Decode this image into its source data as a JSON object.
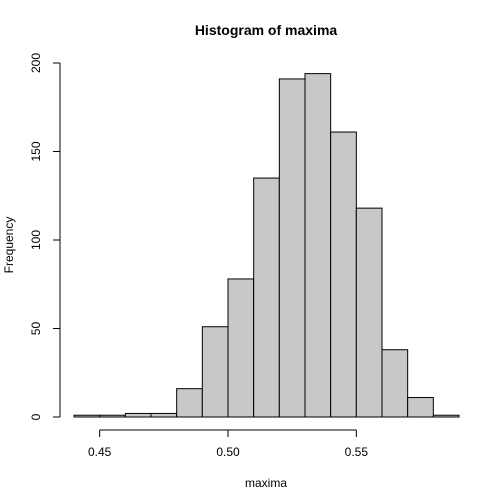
{
  "chart_data": {
    "type": "bar",
    "title": "Histogram of maxima",
    "xlabel": "maxima",
    "ylabel": "Frequency",
    "bin_width": 0.01,
    "bins": [
      {
        "start": 0.44,
        "end": 0.45,
        "count": 1
      },
      {
        "start": 0.45,
        "end": 0.46,
        "count": 1
      },
      {
        "start": 0.46,
        "end": 0.47,
        "count": 2
      },
      {
        "start": 0.47,
        "end": 0.48,
        "count": 2
      },
      {
        "start": 0.48,
        "end": 0.49,
        "count": 16
      },
      {
        "start": 0.49,
        "end": 0.5,
        "count": 51
      },
      {
        "start": 0.5,
        "end": 0.51,
        "count": 78
      },
      {
        "start": 0.51,
        "end": 0.52,
        "count": 135
      },
      {
        "start": 0.52,
        "end": 0.53,
        "count": 191
      },
      {
        "start": 0.53,
        "end": 0.54,
        "count": 194
      },
      {
        "start": 0.54,
        "end": 0.55,
        "count": 161
      },
      {
        "start": 0.55,
        "end": 0.56,
        "count": 118
      },
      {
        "start": 0.56,
        "end": 0.57,
        "count": 38
      },
      {
        "start": 0.57,
        "end": 0.58,
        "count": 11
      },
      {
        "start": 0.58,
        "end": 0.59,
        "count": 1
      }
    ],
    "xlim": [
      0.44,
      0.59
    ],
    "ylim": [
      0,
      200
    ],
    "x_ticks": [
      0.45,
      0.5,
      0.55
    ],
    "x_tick_labels": [
      "0.45",
      "0.50",
      "0.55"
    ],
    "y_ticks": [
      0,
      50,
      100,
      150,
      200
    ],
    "y_tick_labels": [
      "0",
      "50",
      "100",
      "150",
      "200"
    ],
    "grid": false,
    "bar_color": "#c8c8c8",
    "edge_color": "#000000"
  }
}
